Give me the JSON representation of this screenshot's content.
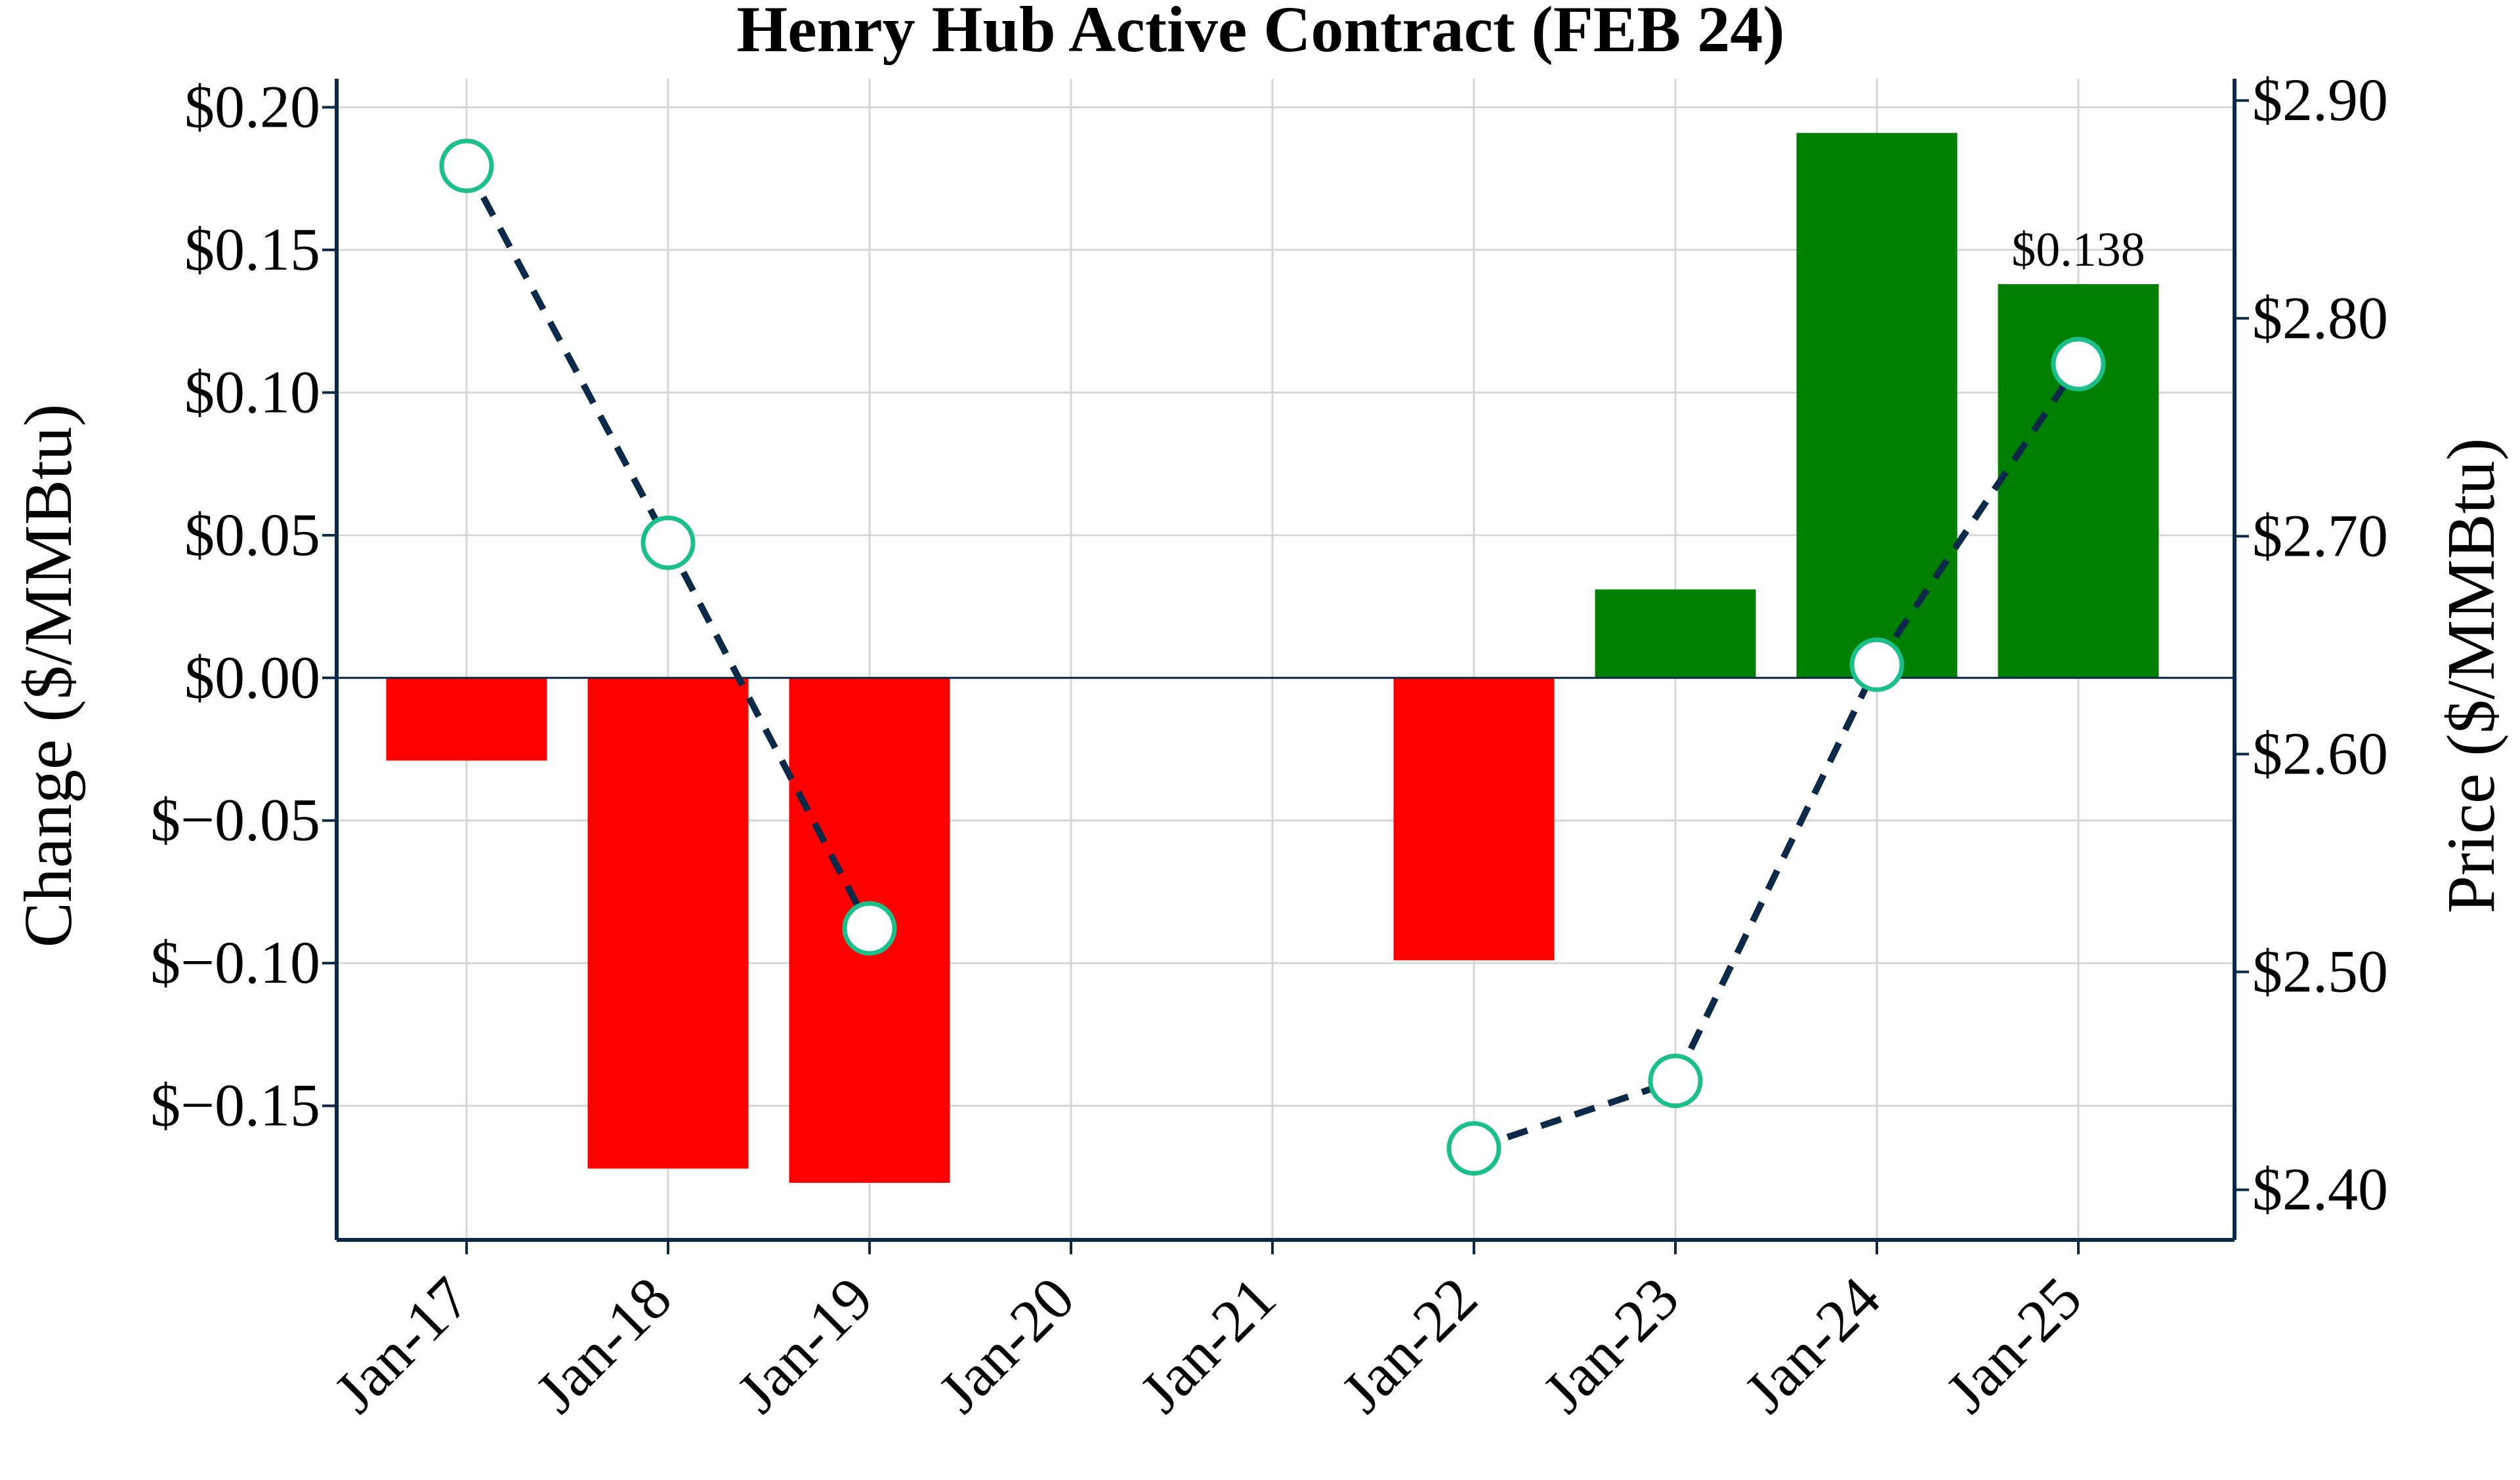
{
  "chart_data": {
    "type": "bar+line",
    "title": "Henry Hub Active Contract (FEB 24)",
    "categories": [
      "Jan-17",
      "Jan-18",
      "Jan-19",
      "Jan-20",
      "Jan-21",
      "Jan-22",
      "Jan-23",
      "Jan-24",
      "Jan-25"
    ],
    "ylabel_left": "Change ($/MMBtu)",
    "ylabel_right": "Price ($/MMBtu)",
    "ylim_left": [
      -0.197,
      0.21
    ],
    "ylim_right": [
      2.377,
      2.91
    ],
    "yticks_left": [
      {
        "value": 0.2,
        "label": "$0.20"
      },
      {
        "value": 0.15,
        "label": "$0.15"
      },
      {
        "value": 0.1,
        "label": "$0.10"
      },
      {
        "value": 0.05,
        "label": "$0.05"
      },
      {
        "value": 0.0,
        "label": "$0.00"
      },
      {
        "value": -0.05,
        "label": "$−0.05"
      },
      {
        "value": -0.1,
        "label": "$−0.10"
      },
      {
        "value": -0.15,
        "label": "$−0.15"
      }
    ],
    "yticks_right": [
      {
        "value": 2.9,
        "label": "$2.90"
      },
      {
        "value": 2.8,
        "label": "$2.80"
      },
      {
        "value": 2.7,
        "label": "$2.70"
      },
      {
        "value": 2.6,
        "label": "$2.60"
      },
      {
        "value": 2.5,
        "label": "$2.50"
      },
      {
        "value": 2.4,
        "label": "$2.40"
      }
    ],
    "change": [
      -0.029,
      -0.172,
      -0.177,
      null,
      null,
      -0.099,
      0.031,
      0.191,
      0.138
    ],
    "price": [
      2.87,
      2.697,
      2.52,
      null,
      null,
      2.419,
      2.45,
      2.641,
      2.779
    ],
    "data_labels": [
      {
        "category": "Jan-25",
        "text": "$0.138"
      }
    ],
    "grid": true,
    "colors": {
      "positive_bar": "#008000",
      "negative_bar": "#ff0000",
      "price_line": "#0b2a4a",
      "marker_edge": "#1abf8a",
      "marker_fill": "#ffffff",
      "grid": "#d6d6d6",
      "axis": "#0b2a4a"
    }
  }
}
